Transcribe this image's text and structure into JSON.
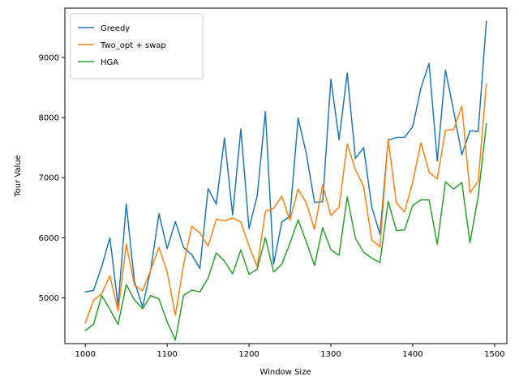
{
  "chart_data": {
    "type": "line",
    "title": "",
    "xlabel": "Window Size",
    "ylabel": "Tour Value",
    "xlim": [
      975,
      1515
    ],
    "ylim": [
      4240,
      9820
    ],
    "x_ticks": [
      1000,
      1100,
      1200,
      1300,
      1400,
      1500
    ],
    "y_ticks": [
      5000,
      6000,
      7000,
      8000,
      9000
    ],
    "grid": false,
    "legend_position": "top-left",
    "x": [
      1000,
      1010,
      1020,
      1030,
      1040,
      1050,
      1060,
      1070,
      1080,
      1090,
      1100,
      1110,
      1120,
      1130,
      1140,
      1150,
      1160,
      1170,
      1180,
      1190,
      1200,
      1210,
      1220,
      1230,
      1240,
      1250,
      1260,
      1270,
      1280,
      1290,
      1300,
      1310,
      1320,
      1330,
      1340,
      1350,
      1360,
      1370,
      1380,
      1390,
      1400,
      1410,
      1420,
      1430,
      1440,
      1450,
      1460,
      1470,
      1480,
      1490
    ],
    "series": [
      {
        "name": "Greedy",
        "color": "#1f77b4",
        "values": [
          5100,
          5125,
          5520,
          6000,
          4870,
          6560,
          5270,
          4850,
          5480,
          6400,
          5820,
          6270,
          5840,
          5720,
          5490,
          6820,
          6560,
          7660,
          6380,
          7810,
          6150,
          6700,
          8100,
          5560,
          6260,
          6360,
          7990,
          7400,
          6590,
          6600,
          8640,
          7630,
          8740,
          7320,
          7500,
          6510,
          6060,
          7620,
          7670,
          7670,
          7850,
          8490,
          8900,
          7280,
          8790,
          8110,
          7380,
          7780,
          7770,
          9600
        ]
      },
      {
        "name": "Two_opt + swap",
        "color": "#ff7f0e",
        "values": [
          4580,
          4960,
          5070,
          5370,
          4780,
          5900,
          5210,
          5120,
          5470,
          5840,
          5430,
          4710,
          5550,
          6190,
          6080,
          5860,
          6310,
          6280,
          6330,
          6260,
          5860,
          5520,
          6440,
          6490,
          6690,
          6290,
          6810,
          6580,
          6140,
          6880,
          6370,
          6510,
          7560,
          7130,
          6850,
          5960,
          5850,
          7640,
          6580,
          6430,
          6930,
          7580,
          7090,
          6980,
          7790,
          7800,
          8190,
          6750,
          6940,
          8560
        ]
      },
      {
        "name": "HGA",
        "color": "#2ca02c",
        "values": [
          4460,
          4560,
          5040,
          4810,
          4560,
          5220,
          4970,
          4820,
          5040,
          4980,
          4600,
          4300,
          5040,
          5130,
          5100,
          5330,
          5750,
          5610,
          5400,
          5800,
          5390,
          5480,
          6000,
          5430,
          5560,
          5910,
          6300,
          5930,
          5540,
          6170,
          5800,
          5710,
          6680,
          5990,
          5760,
          5660,
          5590,
          6610,
          6120,
          6130,
          6540,
          6630,
          6630,
          5890,
          6930,
          6810,
          6920,
          5920,
          6690,
          7900
        ]
      }
    ]
  }
}
